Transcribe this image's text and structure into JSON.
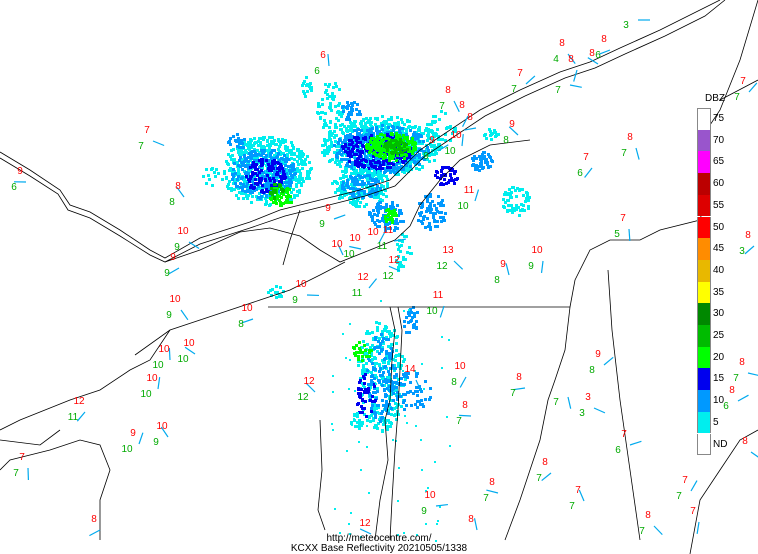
{
  "legend": {
    "title": "DBZ",
    "levels": [
      {
        "label": "75",
        "color": "#ffffff"
      },
      {
        "label": "70",
        "color": "#9955cc"
      },
      {
        "label": "65",
        "color": "#ff00ff"
      },
      {
        "label": "60",
        "color": "#bb0000"
      },
      {
        "label": "55",
        "color": "#dd0000"
      },
      {
        "label": "50",
        "color": "#ff0000"
      },
      {
        "label": "45",
        "color": "#ff8c00"
      },
      {
        "label": "40",
        "color": "#e8b800"
      },
      {
        "label": "35",
        "color": "#ffff00"
      },
      {
        "label": "30",
        "color": "#008800"
      },
      {
        "label": "25",
        "color": "#00bb00"
      },
      {
        "label": "20",
        "color": "#00ff00"
      },
      {
        "label": "15",
        "color": "#0000ee"
      },
      {
        "label": "10",
        "color": "#0099ff"
      },
      {
        "label": "5",
        "color": "#00eeee"
      },
      {
        "label": "ND",
        "color": "#ffffff"
      }
    ]
  },
  "footer": {
    "url": "http://meteocentre.com/",
    "caption": "KCXX Base Reflectivity 20210505/1338"
  },
  "colors": {
    "temperature": "#ff0000",
    "dewpoint": "#00aa00",
    "wind_barb": "#00aaee",
    "boundary": "#000000"
  },
  "stations": [
    {
      "t": "",
      "d": "3"
    },
    {
      "t": "8",
      "d": "4"
    },
    {
      "t": "8",
      "d": ""
    },
    {
      "t": "8",
      "d": "6"
    },
    {
      "t": "8",
      "d": ""
    },
    {
      "t": "6",
      "d": "6"
    },
    {
      "t": "7",
      "d": "7"
    },
    {
      "t": "",
      "d": "7"
    },
    {
      "t": "8",
      "d": "7"
    },
    {
      "t": "8",
      "d": ""
    },
    {
      "t": "8",
      "d": ""
    },
    {
      "t": "9",
      "d": "8"
    },
    {
      "t": "10",
      "d": "10"
    },
    {
      "t": "9",
      "d": "9"
    },
    {
      "t": "7",
      "d": "7"
    },
    {
      "t": "8",
      "d": "7"
    },
    {
      "t": "7",
      "d": "6"
    },
    {
      "t": "9",
      "d": "6"
    },
    {
      "t": "8",
      "d": "8"
    },
    {
      "t": "11",
      "d": "10"
    },
    {
      "t": "9",
      "d": "9"
    },
    {
      "t": "10",
      "d": "9"
    },
    {
      "t": "7",
      "d": "5"
    },
    {
      "t": "8",
      "d": "3"
    },
    {
      "t": "10",
      "d": "10"
    },
    {
      "t": "10",
      "d": ""
    },
    {
      "t": "10",
      "d": ""
    },
    {
      "t": "11",
      "d": "11"
    },
    {
      "t": "13",
      "d": "12"
    },
    {
      "t": "10",
      "d": "9"
    },
    {
      "t": "9",
      "d": "9"
    },
    {
      "t": "12",
      "d": "12"
    },
    {
      "t": "9",
      "d": "8"
    },
    {
      "t": "12",
      "d": "11"
    },
    {
      "t": "10",
      "d": "9"
    },
    {
      "t": "10",
      "d": "9"
    },
    {
      "t": "11",
      "d": "10"
    },
    {
      "t": "10",
      "d": "8"
    },
    {
      "t": "10",
      "d": "10"
    },
    {
      "t": "10",
      "d": "10"
    },
    {
      "t": "9",
      "d": "8"
    },
    {
      "t": "8",
      "d": "7"
    },
    {
      "t": "14",
      "d": ""
    },
    {
      "t": "10",
      "d": "8"
    },
    {
      "t": "8",
      "d": "7"
    },
    {
      "t": "12",
      "d": "12"
    },
    {
      "t": "10",
      "d": "10"
    },
    {
      "t": "8",
      "d": "6"
    },
    {
      "t": "3",
      "d": "3"
    },
    {
      "t": "",
      "d": "7"
    },
    {
      "t": "12",
      "d": "11"
    },
    {
      "t": "8",
      "d": "7"
    },
    {
      "t": "10",
      "d": "9"
    },
    {
      "t": "9",
      "d": "10"
    },
    {
      "t": "7",
      "d": "6"
    },
    {
      "t": "8",
      "d": ""
    },
    {
      "t": "7",
      "d": "7"
    },
    {
      "t": "8",
      "d": "7"
    },
    {
      "t": "8",
      "d": "7"
    },
    {
      "t": "7",
      "d": "7"
    },
    {
      "t": "7",
      "d": "7"
    },
    {
      "t": "10",
      "d": "9"
    },
    {
      "t": "8",
      "d": "7"
    },
    {
      "t": "7",
      "d": ""
    },
    {
      "t": "8",
      "d": ""
    },
    {
      "t": "12",
      "d": ""
    },
    {
      "t": "8",
      "d": ""
    },
    {
      "t": "7",
      "d": "7"
    }
  ]
}
